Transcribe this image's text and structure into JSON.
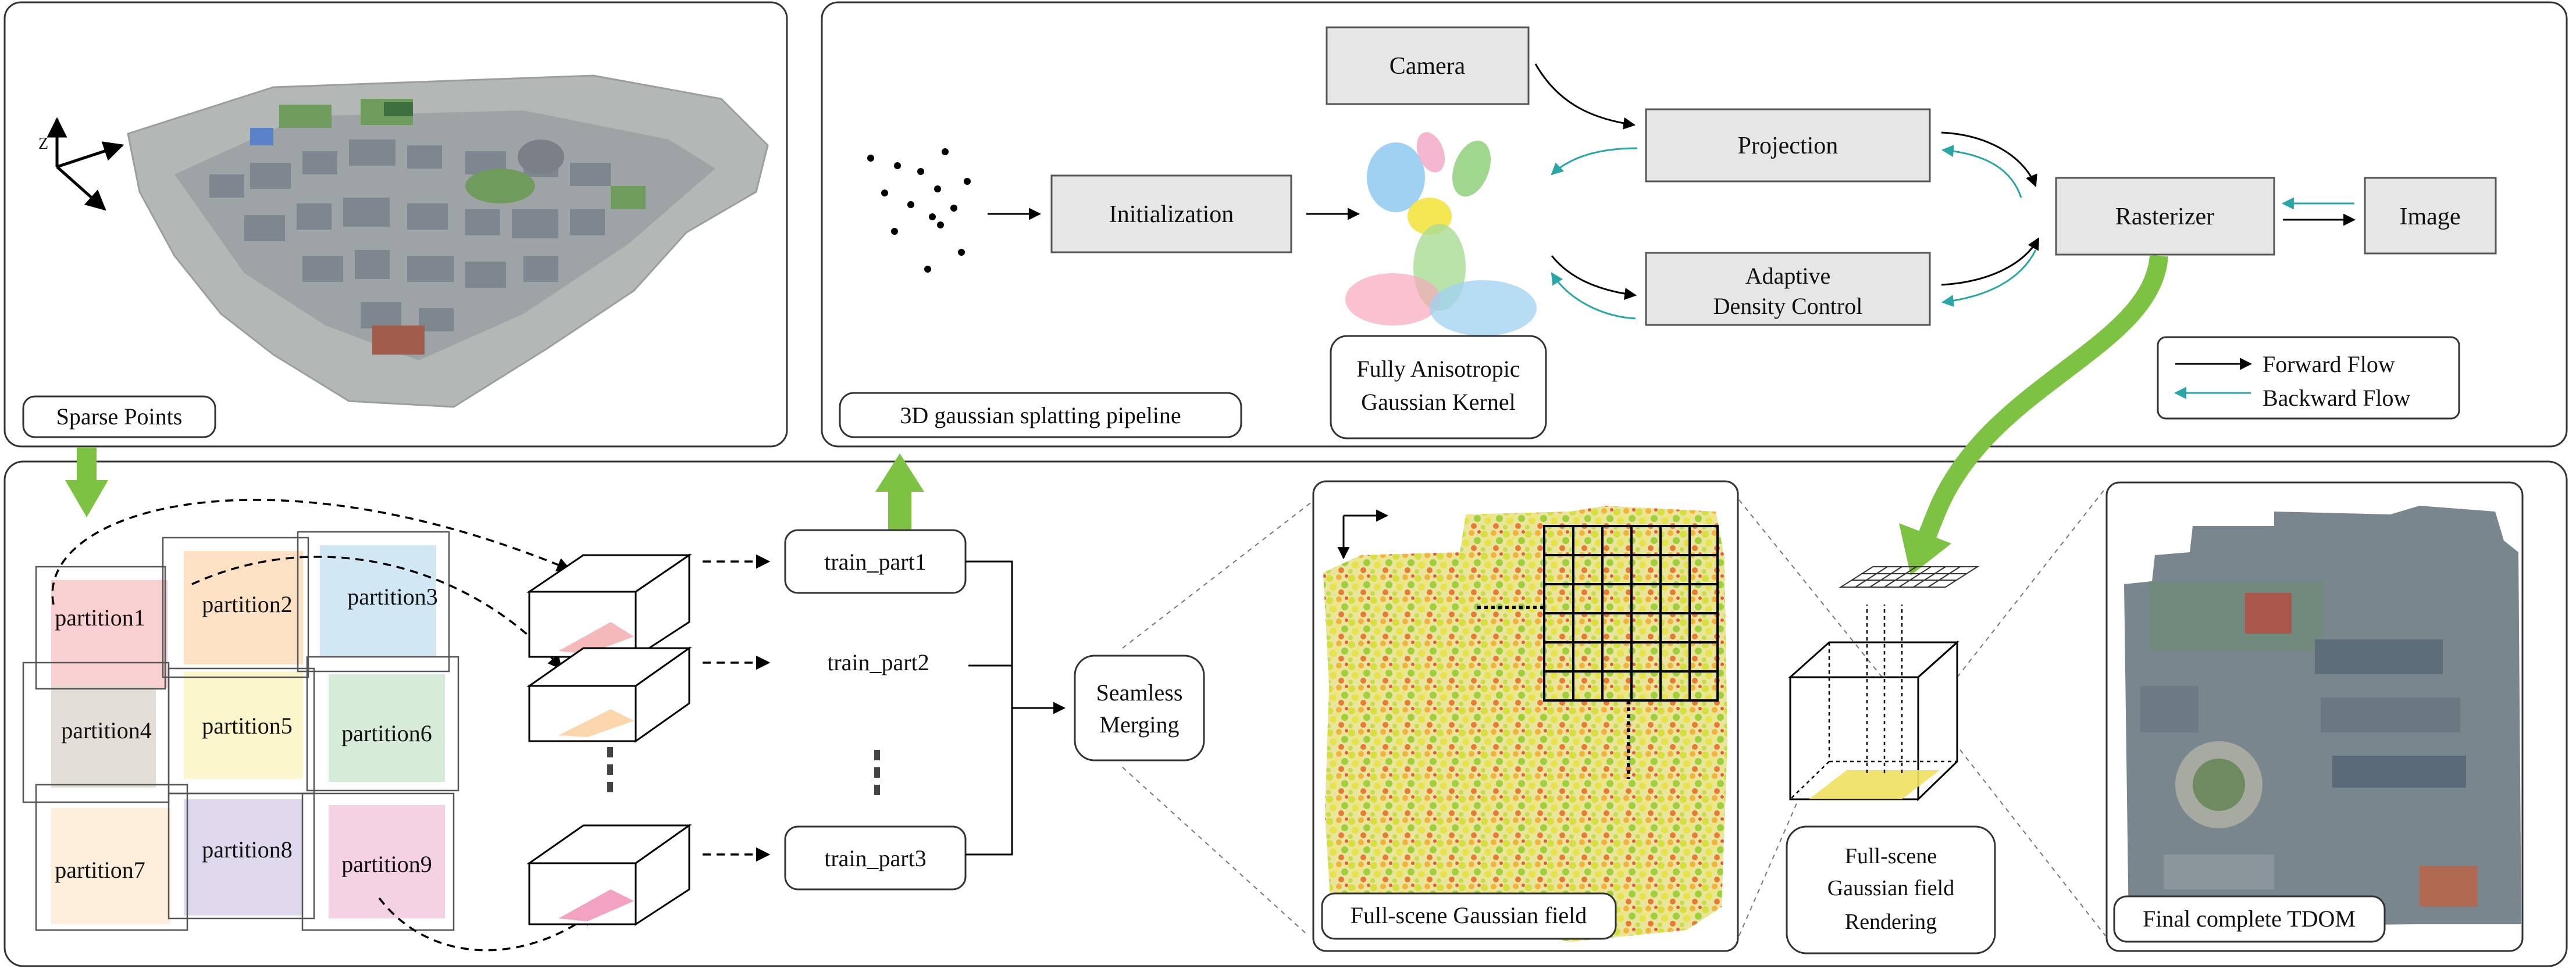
{
  "top_left": {
    "label": "Sparse  Points",
    "axis_z": "Z"
  },
  "pipeline": {
    "label": "3D gaussian splatting pipeline",
    "initialization": "Initialization",
    "camera": "Camera",
    "projection": "Projection",
    "adaptive_line1": "Adaptive",
    "adaptive_line2": "Density Control",
    "rasterizer": "Rasterizer",
    "image": "Image",
    "kernel_line1": "Fully Anisotropic",
    "kernel_line2": "Gaussian Kernel",
    "legend": {
      "forward": "Forward Flow",
      "backward": "Backward Flow"
    }
  },
  "partitions": [
    "partition1",
    "partition2",
    "partition3",
    "partition4",
    "partition5",
    "partition6",
    "partition7",
    "partition8",
    "partition9"
  ],
  "train": {
    "part1": "train_part1",
    "part2": "train_part2",
    "part3": "train_part3"
  },
  "merging": {
    "line1": "Seamless",
    "line2": "Merging"
  },
  "field_label": "Full-scene Gaussian field",
  "render": {
    "line1": "Full-scene",
    "line2": "Gaussian field",
    "line3": "Rendering"
  },
  "tdom_label": "Final complete TDOM",
  "colors": {
    "green_arrow": "#7dc242",
    "backward_arrow": "#2aa6a6",
    "box_fill": "#e6e6e6"
  }
}
